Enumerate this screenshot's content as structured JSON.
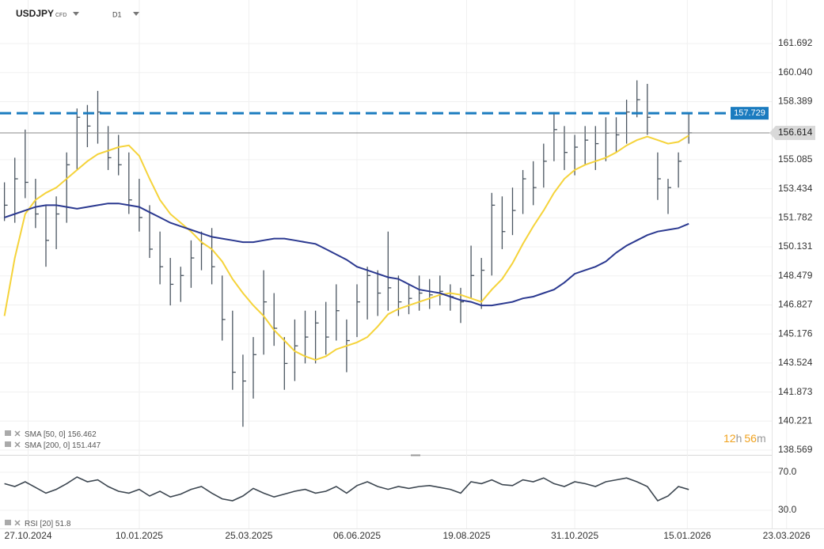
{
  "chart_data": {
    "type": "ohlc",
    "title": "USDJPY",
    "subtitle": "CFD",
    "timeframe": "D1",
    "color": "#4a5560",
    "x": [
      "2024-10-11",
      "2024-10-18",
      "2024-10-25",
      "2024-11-01",
      "2024-11-08",
      "2024-11-15",
      "2024-11-22",
      "2024-11-29",
      "2024-12-06",
      "2024-12-13",
      "2024-12-20",
      "2024-12-27",
      "2025-01-03",
      "2025-01-10",
      "2025-01-17",
      "2025-01-24",
      "2025-01-31",
      "2025-02-07",
      "2025-02-14",
      "2025-02-21",
      "2025-02-28",
      "2025-03-07",
      "2025-03-14",
      "2025-03-21",
      "2025-03-28",
      "2025-04-04",
      "2025-04-11",
      "2025-04-18",
      "2025-04-25",
      "2025-05-02",
      "2025-05-09",
      "2025-05-16",
      "2025-05-23",
      "2025-05-30",
      "2025-06-06",
      "2025-06-13",
      "2025-06-20",
      "2025-06-27",
      "2025-07-04",
      "2025-07-11",
      "2025-07-18",
      "2025-07-25",
      "2025-08-01",
      "2025-08-08",
      "2025-08-15",
      "2025-08-22",
      "2025-08-29",
      "2025-09-05",
      "2025-09-12",
      "2025-09-19",
      "2025-09-26",
      "2025-10-03",
      "2025-10-10",
      "2025-10-17",
      "2025-10-24",
      "2025-10-31",
      "2025-11-07",
      "2025-11-14",
      "2025-11-21",
      "2025-11-28",
      "2025-12-05",
      "2025-12-12",
      "2025-12-19",
      "2025-12-26",
      "2026-01-02",
      "2026-01-09",
      "2026-01-16"
    ],
    "high": [
      153.8,
      155.2,
      156.8,
      154.0,
      152.5,
      153.0,
      155.5,
      158.0,
      158.2,
      159.0,
      157.0,
      156.5,
      155.5,
      154.0,
      152.5,
      151.0,
      149.5,
      149.0,
      150.5,
      151.0,
      151.2,
      148.5,
      146.5,
      144.0,
      145.0,
      148.8,
      147.5,
      145.0,
      146.0,
      146.5,
      146.5,
      147.0,
      148.0,
      146.0,
      148.0,
      149.0,
      148.8,
      151.0,
      148.5,
      148.0,
      148.5,
      148.3,
      148.5,
      148.0,
      147.8,
      150.2,
      149.5,
      153.2,
      153.0,
      153.5,
      154.5,
      155.0,
      156.0,
      157.8,
      157.0,
      156.5,
      157.0,
      157.0,
      157.5,
      157.5,
      158.5,
      159.6,
      159.4,
      155.5,
      154.0,
      155.5,
      157.7
    ],
    "low": [
      151.6,
      151.5,
      152.9,
      151.2,
      149.0,
      150.0,
      151.5,
      154.5,
      155.8,
      156.0,
      154.5,
      154.2,
      152.0,
      151.0,
      149.5,
      148.0,
      146.8,
      147.0,
      147.8,
      148.8,
      148.0,
      144.8,
      142.0,
      139.9,
      141.5,
      144.0,
      144.5,
      142.0,
      142.5,
      143.5,
      143.5,
      144.0,
      144.8,
      143.0,
      145.0,
      146.0,
      146.2,
      146.5,
      146.2,
      146.3,
      146.5,
      146.6,
      146.8,
      146.5,
      145.8,
      147.2,
      146.6,
      148.5,
      150.0,
      150.8,
      152.0,
      152.5,
      153.5,
      155.0,
      154.5,
      154.2,
      154.8,
      154.5,
      155.0,
      155.5,
      156.0,
      157.5,
      156.5,
      152.8,
      152.0,
      153.5,
      156.0
    ],
    "close": [
      152.5,
      154.0,
      153.8,
      152.0,
      150.5,
      152.0,
      154.8,
      157.5,
      157.0,
      157.8,
      155.2,
      154.8,
      152.8,
      151.8,
      150.0,
      149.0,
      148.0,
      148.5,
      149.5,
      150.3,
      149.0,
      146.0,
      143.0,
      142.5,
      144.0,
      147.0,
      145.5,
      143.5,
      144.5,
      145.0,
      145.8,
      145.0,
      146.5,
      144.8,
      147.0,
      148.5,
      147.5,
      147.8,
      147.0,
      147.2,
      147.5,
      147.4,
      147.6,
      147.3,
      147.0,
      148.5,
      148.8,
      152.5,
      151.0,
      152.2,
      154.0,
      153.5,
      155.0,
      156.8,
      155.5,
      155.8,
      156.2,
      156.0,
      156.6,
      156.5,
      157.8,
      158.5,
      157.5,
      154.0,
      153.5,
      155.0,
      156.614
    ],
    "xlim": [
      "2024-10-08",
      "2026-03-13"
    ],
    "xticks": [
      {
        "value": "2024-10-27",
        "label": "27.10.2024"
      },
      {
        "value": "2025-01-10",
        "label": "10.01.2025"
      },
      {
        "value": "2025-03-25",
        "label": "25.03.2025"
      },
      {
        "value": "2025-06-06",
        "label": "06.06.2025"
      },
      {
        "value": "2025-08-19",
        "label": "19.08.2025"
      },
      {
        "value": "2025-10-31",
        "label": "31.10.2025"
      },
      {
        "value": "2026-01-15",
        "label": "15.01.2026"
      },
      {
        "value": "2026-03-23",
        "label": "23.03.2026"
      }
    ],
    "ylim": [
      138.3,
      164.17
    ],
    "yticks": [
      161.692,
      {
        "value": 160.04,
        "label": "160.040"
      },
      158.389,
      155.085,
      153.434,
      151.782,
      150.131,
      148.479,
      146.827,
      145.176,
      143.524,
      141.873,
      140.221,
      138.569
    ],
    "grid": true,
    "overlays": [
      {
        "name": "SMA",
        "params": "[50, 0]",
        "value": 156.462,
        "color": "#f5d33a",
        "values": [
          146.2,
          149.5,
          152.0,
          152.8,
          153.2,
          153.5,
          154.0,
          154.5,
          155.0,
          155.4,
          155.6,
          155.8,
          155.9,
          155.3,
          154.0,
          152.8,
          152.0,
          151.5,
          151.0,
          150.4,
          150.0,
          149.3,
          148.3,
          147.5,
          146.8,
          146.2,
          145.4,
          144.8,
          144.2,
          143.9,
          143.7,
          143.9,
          144.3,
          144.5,
          144.7,
          145.0,
          145.6,
          146.3,
          146.6,
          146.8,
          147.0,
          147.2,
          147.4,
          147.5,
          147.4,
          147.2,
          147.0,
          147.7,
          148.3,
          149.2,
          150.3,
          151.3,
          152.2,
          153.2,
          154.0,
          154.5,
          154.8,
          155.0,
          155.2,
          155.5,
          155.9,
          156.2,
          156.4,
          156.2,
          156.0,
          156.1,
          156.462
        ]
      },
      {
        "name": "SMA",
        "params": "[200, 0]",
        "value": 151.447,
        "color": "#2b3990",
        "values": [
          151.8,
          152.0,
          152.2,
          152.4,
          152.5,
          152.5,
          152.4,
          152.3,
          152.4,
          152.5,
          152.6,
          152.6,
          152.5,
          152.4,
          152.1,
          151.8,
          151.5,
          151.3,
          151.1,
          150.9,
          150.7,
          150.6,
          150.5,
          150.4,
          150.4,
          150.5,
          150.6,
          150.6,
          150.5,
          150.4,
          150.3,
          150.0,
          149.7,
          149.4,
          149.0,
          148.8,
          148.6,
          148.4,
          148.3,
          148.0,
          147.7,
          147.6,
          147.5,
          147.3,
          147.1,
          147.0,
          146.8,
          146.8,
          146.9,
          147.0,
          147.2,
          147.3,
          147.5,
          147.7,
          148.1,
          148.6,
          148.8,
          149.0,
          149.3,
          149.8,
          150.2,
          150.5,
          150.8,
          151.0,
          151.1,
          151.2,
          151.447
        ]
      }
    ],
    "levels": [
      {
        "value": 157.729,
        "color": "#1a7bbf"
      }
    ],
    "last_price": 156.614,
    "countdown": {
      "hours": "12",
      "h": "h",
      "minutes": "56",
      "m": "m"
    },
    "rsi": {
      "name": "RSI",
      "params": "[20]",
      "value": 51.8,
      "color": "#3c4650",
      "ylim": [
        10.8,
        85.8
      ],
      "yticks": [
        {
          "value": 70,
          "label": "70.0"
        },
        {
          "value": 30,
          "label": "30.0"
        }
      ],
      "values": [
        58,
        55,
        60,
        54,
        48,
        52,
        58,
        65,
        60,
        62,
        55,
        50,
        48,
        52,
        45,
        50,
        44,
        47,
        52,
        55,
        48,
        42,
        40,
        45,
        53,
        48,
        44,
        47,
        50,
        52,
        48,
        50,
        55,
        48,
        56,
        60,
        55,
        52,
        55,
        53,
        55,
        56,
        54,
        52,
        48,
        60,
        58,
        62,
        57,
        56,
        62,
        60,
        64,
        58,
        55,
        60,
        58,
        55,
        60,
        62,
        64,
        60,
        55,
        40,
        45,
        55,
        51.8
      ]
    }
  }
}
